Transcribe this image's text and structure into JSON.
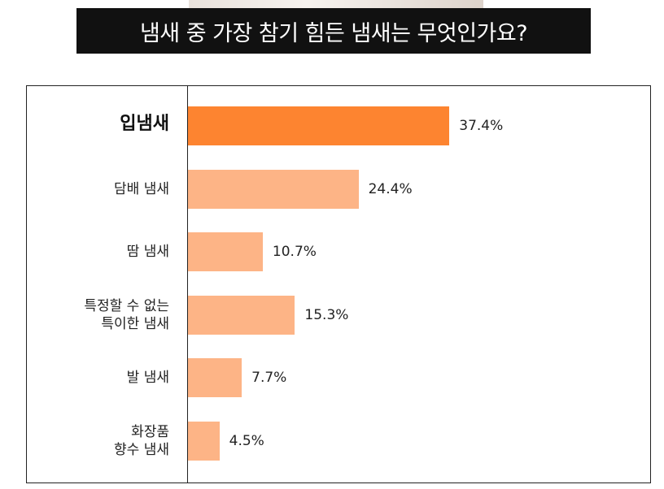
{
  "title": "냄새 중 가장 참기 힘든 냄새는 무엇인가요?",
  "colors": {
    "highlight": "#fd8430",
    "normal": "#fdb486",
    "banner": "#111111"
  },
  "chart_data": {
    "type": "bar",
    "orientation": "horizontal",
    "title": "냄새 중 가장 참기 힘든 냄새는 무엇인가요?",
    "categories": [
      [
        "입냄새"
      ],
      [
        "담배 냄새"
      ],
      [
        "땀 냄새"
      ],
      [
        "특정할 수 없는",
        "특이한 냄새"
      ],
      [
        "발 냄새"
      ],
      [
        "화장품",
        "향수 냄새"
      ]
    ],
    "values": [
      37.4,
      24.4,
      10.7,
      15.3,
      7.7,
      4.5
    ],
    "value_labels": [
      "37.4%",
      "24.4%",
      "10.7%",
      "15.3%",
      "7.7%",
      "4.5%"
    ],
    "highlight_index": 0,
    "unit": "%",
    "grid": false,
    "legend": "none"
  }
}
